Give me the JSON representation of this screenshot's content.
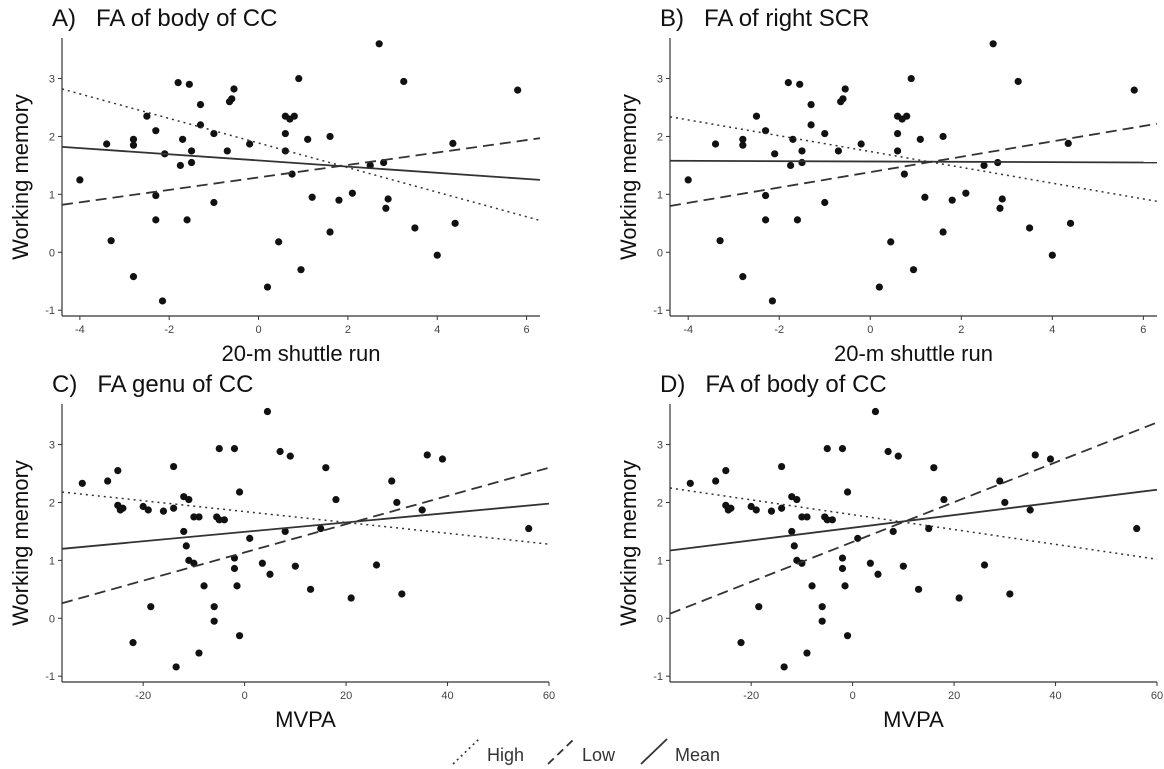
{
  "chart_data": [
    {
      "type": "scatter",
      "title": "A)   FA of body of CC",
      "xlabel": "20-m shuttle run",
      "ylabel": "Working memory",
      "xlim": [
        -4.4,
        6.3
      ],
      "ylim": [
        -1.1,
        3.7
      ],
      "xticks": [
        -4,
        -2,
        0,
        2,
        4,
        6
      ],
      "yticks": [
        -1,
        0,
        1,
        2,
        3
      ],
      "grid": false,
      "points": [
        [
          -4,
          1.25
        ],
        [
          -3.4,
          1.87
        ],
        [
          -3.3,
          0.2
        ],
        [
          -2.8,
          1.95
        ],
        [
          -2.8,
          1.85
        ],
        [
          -2.8,
          -0.42
        ],
        [
          -2.5,
          2.35
        ],
        [
          -2.3,
          2.1
        ],
        [
          -2.3,
          0.98
        ],
        [
          -2.3,
          0.56
        ],
        [
          -2.15,
          -0.84
        ],
        [
          -2.1,
          1.7
        ],
        [
          -1.8,
          2.93
        ],
        [
          -1.75,
          1.5
        ],
        [
          -1.7,
          1.95
        ],
        [
          -1.6,
          0.56
        ],
        [
          -1.55,
          2.9
        ],
        [
          -1.5,
          1.75
        ],
        [
          -1.5,
          1.55
        ],
        [
          -1.3,
          2.55
        ],
        [
          -1.3,
          2.2
        ],
        [
          -1,
          2.05
        ],
        [
          -1,
          0.86
        ],
        [
          -0.7,
          1.75
        ],
        [
          -0.65,
          2.6
        ],
        [
          -0.6,
          2.65
        ],
        [
          -0.55,
          2.82
        ],
        [
          -0.2,
          1.87
        ],
        [
          0.2,
          -0.6
        ],
        [
          0.45,
          0.18
        ],
        [
          0.6,
          2.35
        ],
        [
          0.6,
          2.05
        ],
        [
          0.6,
          1.75
        ],
        [
          0.7,
          2.3
        ],
        [
          0.75,
          1.35
        ],
        [
          0.8,
          2.35
        ],
        [
          0.9,
          3
        ],
        [
          0.95,
          -0.3
        ],
        [
          1.1,
          1.95
        ],
        [
          1.2,
          0.95
        ],
        [
          1.6,
          0.35
        ],
        [
          1.6,
          2
        ],
        [
          1.8,
          0.9
        ],
        [
          2.1,
          1.02
        ],
        [
          2.5,
          1.5
        ],
        [
          2.7,
          3.6
        ],
        [
          2.8,
          1.55
        ],
        [
          2.85,
          0.76
        ],
        [
          2.9,
          0.92
        ],
        [
          3.25,
          2.95
        ],
        [
          3.5,
          0.42
        ],
        [
          4,
          -0.05
        ],
        [
          4.35,
          1.88
        ],
        [
          4.4,
          0.5
        ],
        [
          5.8,
          2.8
        ]
      ],
      "series": [
        {
          "name": "High",
          "style": "dotted",
          "line": [
            [
              -4.4,
              2.82
            ],
            [
              6.3,
              0.55
            ]
          ]
        },
        {
          "name": "Low",
          "style": "dashed",
          "line": [
            [
              -4.4,
              0.82
            ],
            [
              6.3,
              1.97
            ]
          ]
        },
        {
          "name": "Mean",
          "style": "solid",
          "line": [
            [
              -4.4,
              1.82
            ],
            [
              6.3,
              1.25
            ]
          ]
        }
      ]
    },
    {
      "type": "scatter",
      "title": "B)   FA of right SCR",
      "xlabel": "20-m shuttle run",
      "ylabel": "Working memory",
      "xlim": [
        -4.4,
        6.3
      ],
      "ylim": [
        -1.1,
        3.7
      ],
      "xticks": [
        -4,
        -2,
        0,
        2,
        4,
        6
      ],
      "yticks": [
        -1,
        0,
        1,
        2,
        3
      ],
      "grid": false,
      "points": [
        [
          -4,
          1.25
        ],
        [
          -3.4,
          1.87
        ],
        [
          -3.3,
          0.2
        ],
        [
          -2.8,
          1.95
        ],
        [
          -2.8,
          1.85
        ],
        [
          -2.8,
          -0.42
        ],
        [
          -2.5,
          2.35
        ],
        [
          -2.3,
          2.1
        ],
        [
          -2.3,
          0.98
        ],
        [
          -2.3,
          0.56
        ],
        [
          -2.15,
          -0.84
        ],
        [
          -2.1,
          1.7
        ],
        [
          -1.8,
          2.93
        ],
        [
          -1.75,
          1.5
        ],
        [
          -1.7,
          1.95
        ],
        [
          -1.6,
          0.56
        ],
        [
          -1.55,
          2.9
        ],
        [
          -1.5,
          1.75
        ],
        [
          -1.5,
          1.55
        ],
        [
          -1.3,
          2.55
        ],
        [
          -1.3,
          2.2
        ],
        [
          -1,
          2.05
        ],
        [
          -1,
          0.86
        ],
        [
          -0.7,
          1.75
        ],
        [
          -0.65,
          2.6
        ],
        [
          -0.6,
          2.65
        ],
        [
          -0.55,
          2.82
        ],
        [
          -0.2,
          1.87
        ],
        [
          0.2,
          -0.6
        ],
        [
          0.45,
          0.18
        ],
        [
          0.6,
          2.35
        ],
        [
          0.6,
          2.05
        ],
        [
          0.6,
          1.75
        ],
        [
          0.7,
          2.3
        ],
        [
          0.75,
          1.35
        ],
        [
          0.8,
          2.35
        ],
        [
          0.9,
          3
        ],
        [
          0.95,
          -0.3
        ],
        [
          1.1,
          1.95
        ],
        [
          1.2,
          0.95
        ],
        [
          1.6,
          0.35
        ],
        [
          1.6,
          2
        ],
        [
          1.8,
          0.9
        ],
        [
          2.1,
          1.02
        ],
        [
          2.5,
          1.5
        ],
        [
          2.7,
          3.6
        ],
        [
          2.8,
          1.55
        ],
        [
          2.85,
          0.76
        ],
        [
          2.9,
          0.92
        ],
        [
          3.25,
          2.95
        ],
        [
          3.5,
          0.42
        ],
        [
          4,
          -0.05
        ],
        [
          4.35,
          1.88
        ],
        [
          4.4,
          0.5
        ],
        [
          5.8,
          2.8
        ]
      ],
      "series": [
        {
          "name": "High",
          "style": "dotted",
          "line": [
            [
              -4.4,
              2.34
            ],
            [
              6.3,
              0.88
            ]
          ]
        },
        {
          "name": "Low",
          "style": "dashed",
          "line": [
            [
              -4.4,
              0.8
            ],
            [
              6.3,
              2.22
            ]
          ]
        },
        {
          "name": "Mean",
          "style": "solid",
          "line": [
            [
              -4.4,
              1.58
            ],
            [
              6.3,
              1.55
            ]
          ]
        }
      ]
    },
    {
      "type": "scatter",
      "title": "C)   FA genu of CC",
      "xlabel": "MVPA",
      "ylabel": "Working memory",
      "xlim": [
        -36,
        60
      ],
      "ylim": [
        -1.1,
        3.7
      ],
      "xticks": [
        -20,
        0,
        20,
        40,
        60
      ],
      "yticks": [
        -1,
        0,
        1,
        2,
        3
      ],
      "grid": false,
      "points": [
        [
          -32,
          2.33
        ],
        [
          -27,
          2.37
        ],
        [
          -25,
          2.55
        ],
        [
          -25,
          1.95
        ],
        [
          -24.5,
          1.87
        ],
        [
          -24,
          1.9
        ],
        [
          -22,
          -0.42
        ],
        [
          -20,
          1.93
        ],
        [
          -19,
          1.87
        ],
        [
          -18.5,
          0.2
        ],
        [
          -16,
          1.85
        ],
        [
          -14,
          2.62
        ],
        [
          -14,
          1.9
        ],
        [
          -13.5,
          -0.84
        ],
        [
          -12,
          2.1
        ],
        [
          -12,
          1.5
        ],
        [
          -11.5,
          1.25
        ],
        [
          -11,
          1
        ],
        [
          -11,
          2.05
        ],
        [
          -10,
          1.75
        ],
        [
          -10,
          0.95
        ],
        [
          -9,
          -0.6
        ],
        [
          -9,
          1.75
        ],
        [
          -8,
          0.56
        ],
        [
          -6,
          -0.05
        ],
        [
          -6,
          0.2
        ],
        [
          -5.5,
          1.75
        ],
        [
          -5,
          2.93
        ],
        [
          -5,
          1.7
        ],
        [
          -4,
          1.7
        ],
        [
          -2,
          2.93
        ],
        [
          -2,
          1.04
        ],
        [
          -2,
          0.86
        ],
        [
          -1.5,
          0.56
        ],
        [
          -1,
          2.18
        ],
        [
          -1,
          -0.3
        ],
        [
          1,
          1.38
        ],
        [
          3.5,
          0.95
        ],
        [
          4.5,
          3.57
        ],
        [
          5,
          0.76
        ],
        [
          7,
          2.88
        ],
        [
          8,
          1.5
        ],
        [
          9,
          2.8
        ],
        [
          10,
          0.9
        ],
        [
          13,
          0.5
        ],
        [
          15,
          1.55
        ],
        [
          16,
          2.6
        ],
        [
          18,
          2.05
        ],
        [
          21,
          0.35
        ],
        [
          26,
          0.92
        ],
        [
          29,
          2.37
        ],
        [
          30,
          2
        ],
        [
          31,
          0.42
        ],
        [
          35,
          1.87
        ],
        [
          36,
          2.82
        ],
        [
          39,
          2.75
        ],
        [
          56,
          1.55
        ]
      ],
      "series": [
        {
          "name": "High",
          "style": "dotted",
          "line": [
            [
              -36,
              2.18
            ],
            [
              60,
              1.28
            ]
          ]
        },
        {
          "name": "Low",
          "style": "dashed",
          "line": [
            [
              -36,
              0.26
            ],
            [
              60,
              2.6
            ]
          ]
        },
        {
          "name": "Mean",
          "style": "solid",
          "line": [
            [
              -36,
              1.2
            ],
            [
              60,
              1.98
            ]
          ]
        }
      ]
    },
    {
      "type": "scatter",
      "title": "D)   FA of body of CC",
      "xlabel": "MVPA",
      "ylabel": "Working memory",
      "xlim": [
        -36,
        60
      ],
      "ylim": [
        -1.1,
        3.7
      ],
      "xticks": [
        -20,
        0,
        20,
        40,
        60
      ],
      "yticks": [
        -1,
        0,
        1,
        2,
        3
      ],
      "grid": false,
      "points": [
        [
          -32,
          2.33
        ],
        [
          -27,
          2.37
        ],
        [
          -25,
          2.55
        ],
        [
          -25,
          1.95
        ],
        [
          -24.5,
          1.87
        ],
        [
          -24,
          1.9
        ],
        [
          -22,
          -0.42
        ],
        [
          -20,
          1.93
        ],
        [
          -19,
          1.87
        ],
        [
          -18.5,
          0.2
        ],
        [
          -16,
          1.85
        ],
        [
          -14,
          2.62
        ],
        [
          -14,
          1.9
        ],
        [
          -13.5,
          -0.84
        ],
        [
          -12,
          2.1
        ],
        [
          -12,
          1.5
        ],
        [
          -11.5,
          1.25
        ],
        [
          -11,
          1
        ],
        [
          -11,
          2.05
        ],
        [
          -10,
          1.75
        ],
        [
          -10,
          0.95
        ],
        [
          -9,
          -0.6
        ],
        [
          -9,
          1.75
        ],
        [
          -8,
          0.56
        ],
        [
          -6,
          -0.05
        ],
        [
          -6,
          0.2
        ],
        [
          -5.5,
          1.75
        ],
        [
          -5,
          2.93
        ],
        [
          -5,
          1.7
        ],
        [
          -4,
          1.7
        ],
        [
          -2,
          2.93
        ],
        [
          -2,
          1.04
        ],
        [
          -2,
          0.86
        ],
        [
          -1.5,
          0.56
        ],
        [
          -1,
          2.18
        ],
        [
          -1,
          -0.3
        ],
        [
          1,
          1.38
        ],
        [
          3.5,
          0.95
        ],
        [
          4.5,
          3.57
        ],
        [
          5,
          0.76
        ],
        [
          7,
          2.88
        ],
        [
          8,
          1.5
        ],
        [
          9,
          2.8
        ],
        [
          10,
          0.9
        ],
        [
          13,
          0.5
        ],
        [
          15,
          1.55
        ],
        [
          16,
          2.6
        ],
        [
          18,
          2.05
        ],
        [
          21,
          0.35
        ],
        [
          26,
          0.92
        ],
        [
          29,
          2.37
        ],
        [
          30,
          2
        ],
        [
          31,
          0.42
        ],
        [
          35,
          1.87
        ],
        [
          36,
          2.82
        ],
        [
          39,
          2.75
        ],
        [
          56,
          1.55
        ]
      ],
      "series": [
        {
          "name": "High",
          "style": "dotted",
          "line": [
            [
              -36,
              2.25
            ],
            [
              60,
              1.02
            ]
          ]
        },
        {
          "name": "Low",
          "style": "dashed",
          "line": [
            [
              -36,
              0.08
            ],
            [
              60,
              3.38
            ]
          ]
        },
        {
          "name": "Mean",
          "style": "solid",
          "line": [
            [
              -36,
              1.17
            ],
            [
              60,
              2.22
            ]
          ]
        }
      ]
    }
  ],
  "legend": {
    "placement": "bottom-center",
    "items": [
      {
        "label": "High",
        "style": "dotted"
      },
      {
        "label": "Low",
        "style": "dashed"
      },
      {
        "label": "Mean",
        "style": "solid"
      }
    ]
  },
  "colors": {
    "points": "#111111",
    "lines": "#333333",
    "axes": "#333333",
    "text": "#111111"
  }
}
